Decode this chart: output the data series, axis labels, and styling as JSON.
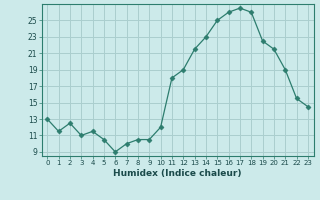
{
  "x": [
    0,
    1,
    2,
    3,
    4,
    5,
    6,
    7,
    8,
    9,
    10,
    11,
    12,
    13,
    14,
    15,
    16,
    17,
    18,
    19,
    20,
    21,
    22,
    23
  ],
  "y": [
    13,
    11.5,
    12.5,
    11,
    11.5,
    10.5,
    9,
    10,
    10.5,
    10.5,
    12,
    18,
    19,
    21.5,
    23,
    25,
    26,
    26.5,
    26,
    22.5,
    21.5,
    19,
    15.5,
    14.5
  ],
  "line_color": "#2d7d6e",
  "marker": "D",
  "marker_size": 2.5,
  "bg_color": "#cceaea",
  "grid_color": "#aacece",
  "xlabel": "Humidex (Indice chaleur)",
  "ylabel_ticks": [
    9,
    11,
    13,
    15,
    17,
    19,
    21,
    23,
    25
  ],
  "ylim": [
    8.5,
    27.0
  ],
  "xlim": [
    -0.5,
    23.5
  ],
  "xtick_labels": [
    "0",
    "1",
    "2",
    "3",
    "4",
    "5",
    "6",
    "7",
    "8",
    "9",
    "10",
    "11",
    "12",
    "13",
    "14",
    "15",
    "16",
    "17",
    "18",
    "19",
    "20",
    "21",
    "22",
    "23"
  ]
}
